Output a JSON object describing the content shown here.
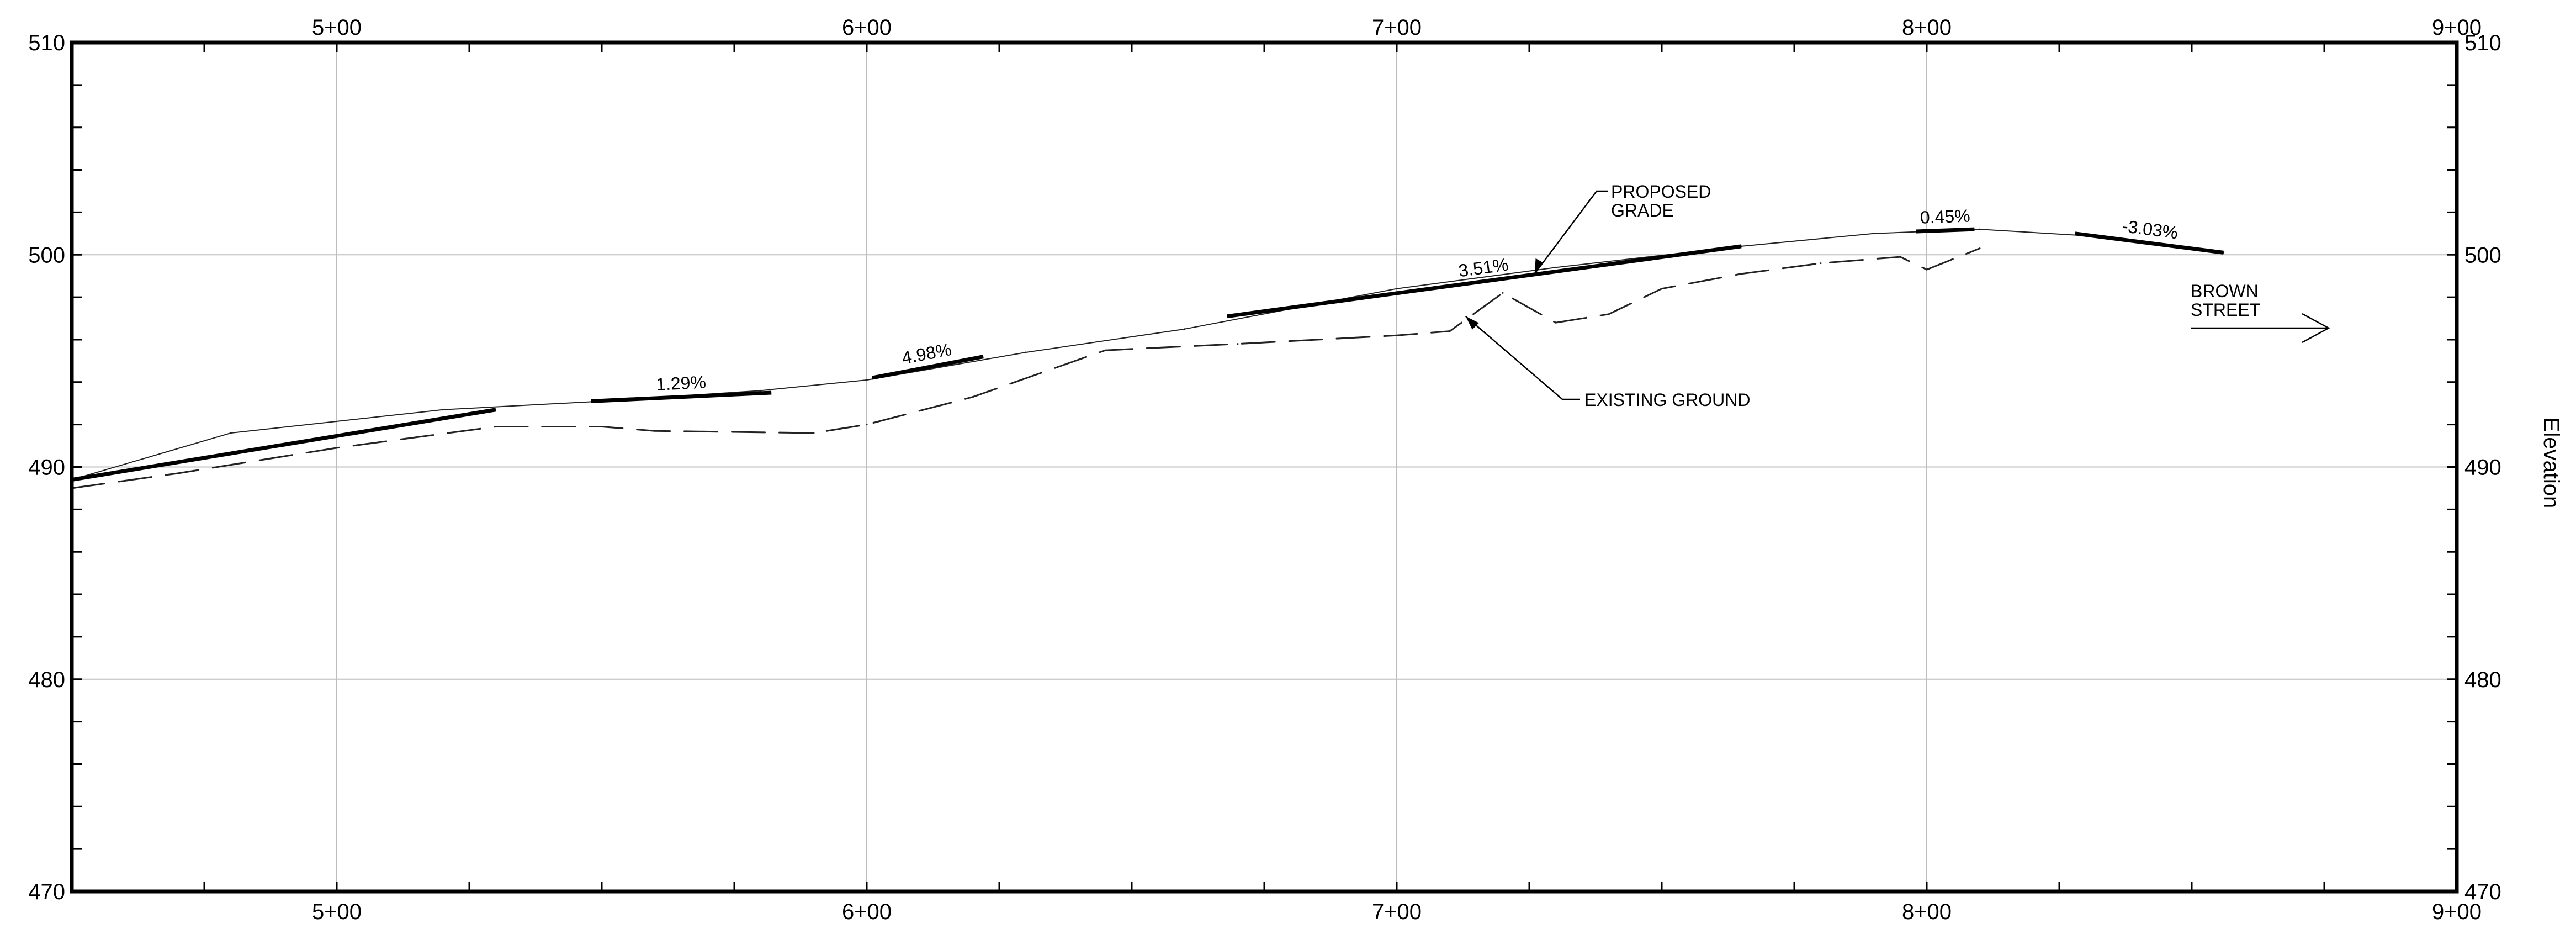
{
  "chart_data": {
    "type": "line",
    "x_ticks": [
      "5+00",
      "6+00",
      "7+00",
      "8+00",
      "9+00"
    ],
    "y_ticks": [
      "470",
      "480",
      "490",
      "500",
      "510"
    ],
    "xlim": [
      450,
      900
    ],
    "ylim": [
      470,
      510
    ],
    "grid": true,
    "right_axis_label": "Elevation",
    "series": [
      {
        "style": "solid-thin",
        "x": [
          450,
          480,
          520,
          550,
          580,
          600,
          630,
          660,
          700,
          730,
          765,
          790,
          810,
          830,
          856
        ],
        "y": [
          489.4,
          491.6,
          492.7,
          493.1,
          493.6,
          494.1,
          495.4,
          496.5,
          498.4,
          499.4,
          500.4,
          501.0,
          501.2,
          500.9,
          500.1
        ]
      },
      {
        "style": "dashed",
        "x": [
          450,
          470,
          500,
          530,
          550,
          560,
          590,
          600,
          620,
          645,
          670,
          700,
          710,
          720,
          730,
          740,
          750,
          765,
          780,
          795,
          800,
          810
        ],
        "y": [
          489.0,
          489.7,
          490.9,
          491.9,
          491.9,
          491.7,
          491.6,
          492.0,
          493.3,
          495.5,
          495.8,
          496.2,
          496.4,
          498.2,
          496.8,
          497.2,
          498.4,
          499.1,
          499.6,
          499.9,
          499.3,
          500.3
        ]
      }
    ],
    "grade_segments": [
      {
        "label": "",
        "x": [
          450,
          530
        ],
        "y": [
          489.4,
          492.7
        ]
      },
      {
        "label": "1.29%",
        "x": [
          548,
          582
        ],
        "y": [
          493.1,
          493.5
        ]
      },
      {
        "label": "4.98%",
        "x": [
          601,
          622
        ],
        "y": [
          494.2,
          495.2
        ]
      },
      {
        "label": "3.51%",
        "x": [
          668,
          765
        ],
        "y": [
          497.1,
          500.4
        ]
      },
      {
        "label": "0.45%",
        "x": [
          798,
          809
        ],
        "y": [
          501.1,
          501.2
        ]
      },
      {
        "label": "-3.03%",
        "x": [
          828,
          856
        ],
        "y": [
          501.0,
          500.1
        ]
      }
    ],
    "annotations": [
      {
        "lines": [
          "PROPOSED",
          "GRADE"
        ],
        "points_to": {
          "x": 726,
          "y": 499.1
        }
      },
      {
        "lines": [
          "EXISTING GROUND"
        ],
        "points_to": {
          "x": 713,
          "y": 497.1
        }
      },
      {
        "lines": [
          "BROWN",
          "STREET"
        ],
        "direction_arrow": "right"
      }
    ]
  }
}
